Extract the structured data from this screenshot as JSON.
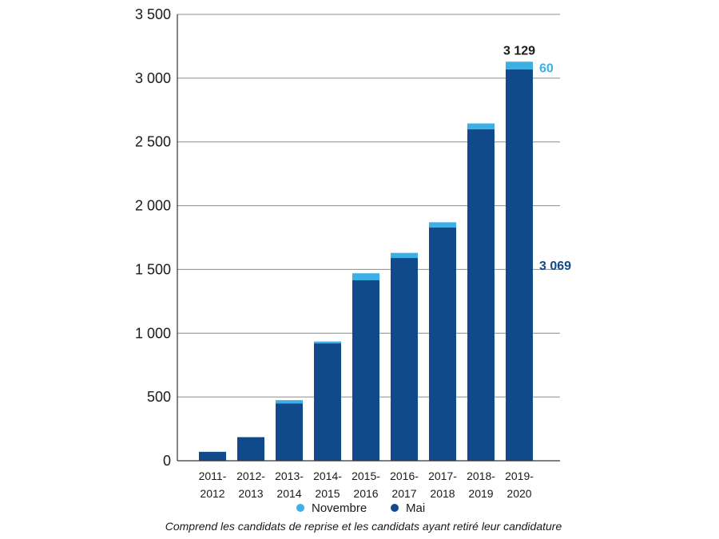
{
  "chart_data": {
    "type": "bar",
    "stacked": true,
    "categories": [
      "2011-2012",
      "2012-2013",
      "2013-2014",
      "2014-2015",
      "2015-2016",
      "2016-2017",
      "2017-2018",
      "2018-2019",
      "2019-2020"
    ],
    "series": [
      {
        "name": "Mai",
        "color": "#114a8b",
        "values": [
          70,
          185,
          450,
          920,
          1415,
          1590,
          1830,
          2600,
          3069
        ]
      },
      {
        "name": "Novembre",
        "color": "#3cb0e6",
        "values": [
          0,
          0,
          25,
          15,
          55,
          40,
          40,
          45,
          60
        ]
      }
    ],
    "ylim": [
      0,
      3500
    ],
    "yticks": [
      0,
      500,
      1000,
      1500,
      2000,
      2500,
      3000,
      3500
    ],
    "ytick_labels": [
      "0",
      "500",
      "1 000",
      "1 500",
      "2 000",
      "2 500",
      "3 000",
      "3 500"
    ],
    "grid": true,
    "legend": {
      "placement": "bottom",
      "entries": [
        "Novembre",
        "Mai"
      ]
    },
    "annotations": {
      "total": "3 129",
      "novembre_last": "60",
      "mai_last": "3 069"
    },
    "note": "Comprend les candidats de reprise et les candidats ayant retiré leur candidature"
  }
}
